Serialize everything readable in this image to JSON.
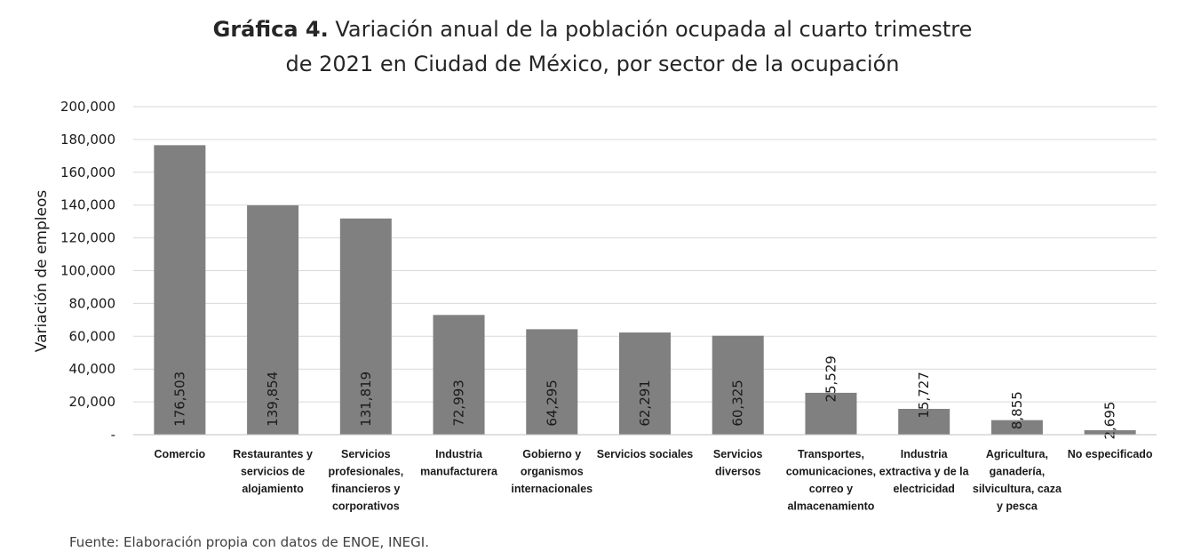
{
  "title_bold": "Gráfica 4.",
  "title_rest_line1": " Variación anual de la población ocupada al cuarto trimestre",
  "title_line2": "de 2021 en Ciudad de México, por sector de la ocupación",
  "source": "Fuente: Elaboración propia con datos de ENOE, INEGI.",
  "chart_data": {
    "type": "bar",
    "title": "Gráfica 4. Variación anual de la población ocupada al cuarto trimestre de 2021 en Ciudad de México, por sector de la ocupación",
    "ylabel": "Variación de empleos",
    "xlabel": "",
    "ylim": [
      0,
      200000
    ],
    "yticks": [
      0,
      20000,
      40000,
      60000,
      80000,
      100000,
      120000,
      140000,
      160000,
      180000,
      200000
    ],
    "ytick_labels": [
      "-",
      "20,000",
      "40,000",
      "60,000",
      "80,000",
      "100,000",
      "120,000",
      "140,000",
      "160,000",
      "180,000",
      "200,000"
    ],
    "grid": true,
    "bar_color": "#808080",
    "categories": [
      [
        "Comercio"
      ],
      [
        "Restaurantes y",
        "servicios de",
        "alojamiento"
      ],
      [
        "Servicios",
        "profesionales,",
        "financieros y",
        "corporativos"
      ],
      [
        "Industria",
        "manufacturera"
      ],
      [
        "Gobierno y",
        "organismos",
        "internacionales"
      ],
      [
        "Servicios sociales"
      ],
      [
        "Servicios",
        "diversos"
      ],
      [
        "Transportes,",
        "comunicaciones,",
        "correo y",
        "almacenamiento"
      ],
      [
        "Industria",
        "extractiva y de la",
        "electricidad"
      ],
      [
        "Agricultura,",
        "ganadería,",
        "silvicultura, caza",
        "y pesca"
      ],
      [
        "No especificado"
      ]
    ],
    "values": [
      176503,
      139854,
      131819,
      72993,
      64295,
      62291,
      60325,
      25529,
      15727,
      8855,
      2695
    ],
    "data_labels": [
      "176,503",
      "139,854",
      "131,819",
      "72,993",
      "64,295",
      "62,291",
      "60,325",
      "25,529",
      "15,727",
      "8,855",
      "2,695"
    ]
  }
}
